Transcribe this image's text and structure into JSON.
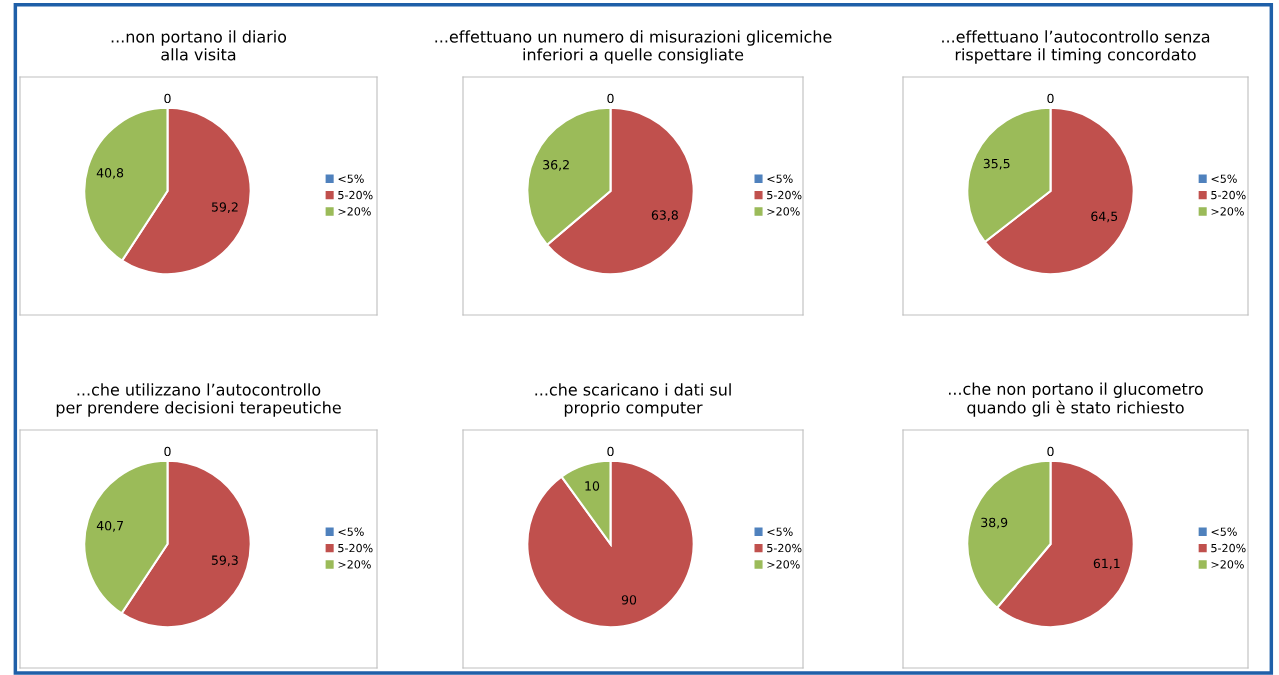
{
  "chart_data": [
    {
      "type": "pie",
      "title": "...non portano il diario\nalla visita",
      "categories": [
        "<5%",
        "5-20%",
        ">20%"
      ],
      "values": [
        0,
        59.2,
        40.8
      ],
      "value_labels": [
        "0",
        "59,2",
        "40,8"
      ],
      "colors": [
        "#4f81bd",
        "#c0504d",
        "#9bbb59"
      ],
      "legend": "right"
    },
    {
      "type": "pie",
      "title": "...effettuano un numero di misurazioni glicemiche\ninferiori a quelle consigliate",
      "categories": [
        "<5%",
        "5-20%",
        ">20%"
      ],
      "values": [
        0,
        63.8,
        36.2
      ],
      "value_labels": [
        "0",
        "63,8",
        "36,2"
      ],
      "colors": [
        "#4f81bd",
        "#c0504d",
        "#9bbb59"
      ],
      "legend": "right"
    },
    {
      "type": "pie",
      "title": "...effettuano l’autocontrollo senza\nrispettare il timing concordato",
      "categories": [
        "<5%",
        "5-20%",
        ">20%"
      ],
      "values": [
        0,
        64.5,
        35.5
      ],
      "value_labels": [
        "0",
        "64,5",
        "35,5"
      ],
      "colors": [
        "#4f81bd",
        "#c0504d",
        "#9bbb59"
      ],
      "legend": "right"
    },
    {
      "type": "pie",
      "title": "...che utilizzano l’autocontrollo\nper prendere decisioni terapeutiche",
      "categories": [
        "<5%",
        "5-20%",
        ">20%"
      ],
      "values": [
        0,
        59.3,
        40.7
      ],
      "value_labels": [
        "0",
        "59,3",
        "40,7"
      ],
      "colors": [
        "#4f81bd",
        "#c0504d",
        "#9bbb59"
      ],
      "legend": "right"
    },
    {
      "type": "pie",
      "title": "...che scaricano i dati sul\nproprio computer",
      "categories": [
        "<5%",
        "5-20%",
        ">20%"
      ],
      "values": [
        0,
        90,
        10
      ],
      "value_labels": [
        "0",
        "90",
        "10"
      ],
      "colors": [
        "#4f81bd",
        "#c0504d",
        "#9bbb59"
      ],
      "legend": "right"
    },
    {
      "type": "pie",
      "title": "...che non portano il glucometro\nquando gli è stato richiesto",
      "categories": [
        "<5%",
        "5-20%",
        ">20%"
      ],
      "values": [
        0,
        61.1,
        38.9
      ],
      "value_labels": [
        "0",
        "61,1",
        "38,9"
      ],
      "colors": [
        "#4f81bd",
        "#c0504d",
        "#9bbb59"
      ],
      "legend": "right"
    }
  ]
}
